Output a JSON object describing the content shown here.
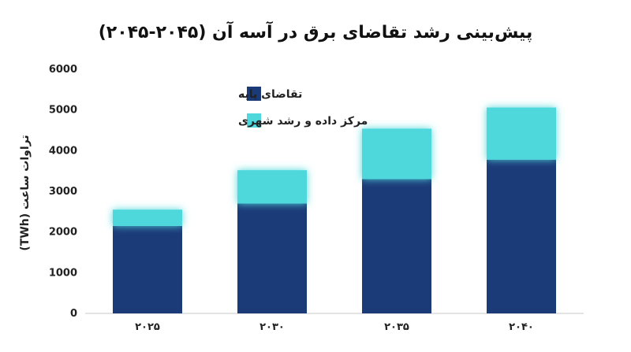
{
  "chart_data": {
    "type": "bar",
    "stacked": true,
    "title": "پیش‌بینی رشد تقاضای برق در آسه آن (۲۰۴۵-۲۰۴۵)",
    "ylabel": "تراوات ساعت (TWh)",
    "xlabel": "",
    "categories": [
      "۲۰۲۵",
      "۲۰۳۰",
      "۲۰۳۵",
      "۲۰۴۰"
    ],
    "ylim": [
      0,
      6000
    ],
    "yticks": [
      0,
      1000,
      2000,
      3000,
      4000,
      5000,
      6000
    ],
    "ytick_labels": [
      "0",
      "1000",
      "2000",
      "3000",
      "4000",
      "5000",
      "6000"
    ],
    "series": [
      {
        "name": "تقاضای پایه",
        "values": [
          2150,
          2700,
          3300,
          3780
        ],
        "color": "#1b3a78"
      },
      {
        "name": "مرکز داده و رشد شهری",
        "values": [
          400,
          820,
          1240,
          1280
        ],
        "color": "#4fd8dc"
      }
    ],
    "legend_position": "top-left",
    "grid": false
  }
}
